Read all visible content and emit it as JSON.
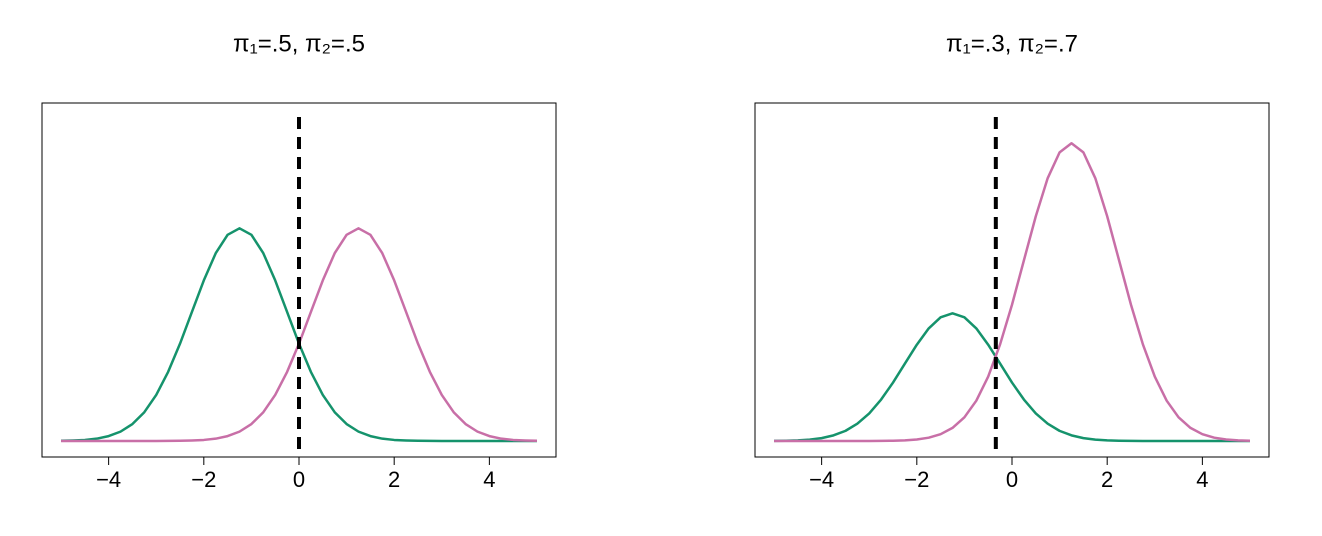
{
  "chart_data": [
    {
      "type": "line",
      "title": "π₁=.5,   π₂=.5",
      "x": [
        -5,
        -4.75,
        -4.5,
        -4.25,
        -4,
        -3.75,
        -3.5,
        -3.25,
        -3,
        -2.75,
        -2.5,
        -2.25,
        -2,
        -1.75,
        -1.5,
        -1.25,
        -1,
        -0.75,
        -0.5,
        -0.25,
        0,
        0.25,
        0.5,
        0.75,
        1,
        1.25,
        1.5,
        1.75,
        2,
        2.25,
        2.5,
        2.75,
        3,
        3.25,
        3.5,
        3.75,
        4,
        4.25,
        4.5,
        4.75,
        5
      ],
      "series": [
        {
          "color": "#15936c",
          "values": [
            0.0002,
            0.0005,
            0.001,
            0.0022,
            0.0046,
            0.0088,
            0.0159,
            0.027,
            0.0432,
            0.0648,
            0.0913,
            0.121,
            0.1506,
            0.1761,
            0.1934,
            0.1995,
            0.1934,
            0.1761,
            0.1506,
            0.121,
            0.0913,
            0.0648,
            0.0432,
            0.027,
            0.0159,
            0.0088,
            0.0046,
            0.0022,
            0.001,
            0.0005,
            0.0002,
            0.0001,
            0,
            0,
            0,
            0,
            0,
            0,
            0,
            0,
            0
          ]
        },
        {
          "color": "#c86fa7",
          "values": [
            0,
            0,
            0,
            0,
            0,
            0,
            0,
            0,
            0,
            0.0001,
            0.0002,
            0.0005,
            0.001,
            0.0022,
            0.0046,
            0.0088,
            0.0159,
            0.027,
            0.0432,
            0.0648,
            0.0913,
            0.121,
            0.1506,
            0.1761,
            0.1934,
            0.1995,
            0.1934,
            0.1761,
            0.1506,
            0.121,
            0.0913,
            0.0648,
            0.0432,
            0.027,
            0.0159,
            0.0088,
            0.0046,
            0.0022,
            0.001,
            0.0005,
            0.0002
          ]
        }
      ],
      "threshold": 0,
      "xlim": [
        -5.4,
        5.4
      ],
      "ylim": [
        -0.015,
        0.317
      ],
      "xticks": [
        {
          "value": -4,
          "label": "−4"
        },
        {
          "value": -2,
          "label": "−2"
        },
        0,
        2,
        4
      ]
    },
    {
      "type": "line",
      "title": "π₁=.3,   π₂=.7",
      "x": [
        -5,
        -4.75,
        -4.5,
        -4.25,
        -4,
        -3.75,
        -3.5,
        -3.25,
        -3,
        -2.75,
        -2.5,
        -2.25,
        -2,
        -1.75,
        -1.5,
        -1.25,
        -1,
        -0.75,
        -0.5,
        -0.25,
        0,
        0.25,
        0.5,
        0.75,
        1,
        1.25,
        1.5,
        1.75,
        2,
        2.25,
        2.5,
        2.75,
        3,
        3.25,
        3.5,
        3.75,
        4,
        4.25,
        4.5,
        4.75,
        5
      ],
      "series": [
        {
          "color": "#15936c",
          "values": [
            0.0001,
            0.0003,
            0.0006,
            0.0013,
            0.0027,
            0.0053,
            0.0095,
            0.0162,
            0.0259,
            0.0389,
            0.0548,
            0.0726,
            0.0903,
            0.1056,
            0.116,
            0.1197,
            0.116,
            0.1056,
            0.0903,
            0.0726,
            0.0548,
            0.0389,
            0.0259,
            0.0162,
            0.0095,
            0.0053,
            0.0027,
            0.0013,
            0.0006,
            0.0003,
            0.0001,
            0,
            0,
            0,
            0,
            0,
            0,
            0,
            0,
            0,
            0
          ]
        },
        {
          "color": "#c86fa7",
          "values": [
            0,
            0,
            0,
            0,
            0,
            0,
            0,
            0,
            0,
            0.0001,
            0.0003,
            0.0006,
            0.0014,
            0.0031,
            0.0064,
            0.0123,
            0.0222,
            0.0378,
            0.0604,
            0.0907,
            0.1278,
            0.1694,
            0.2108,
            0.2465,
            0.2707,
            0.2792,
            0.2707,
            0.2465,
            0.2108,
            0.1694,
            0.1278,
            0.0907,
            0.0604,
            0.0378,
            0.0222,
            0.0123,
            0.0064,
            0.0031,
            0.0014,
            0.0006,
            0.0003
          ]
        }
      ],
      "threshold": -0.34,
      "xlim": [
        -5.4,
        5.4
      ],
      "ylim": [
        -0.015,
        0.317
      ],
      "xticks": [
        {
          "value": -4,
          "label": "−4"
        },
        {
          "value": -2,
          "label": "−2"
        },
        0,
        2,
        4
      ]
    }
  ]
}
